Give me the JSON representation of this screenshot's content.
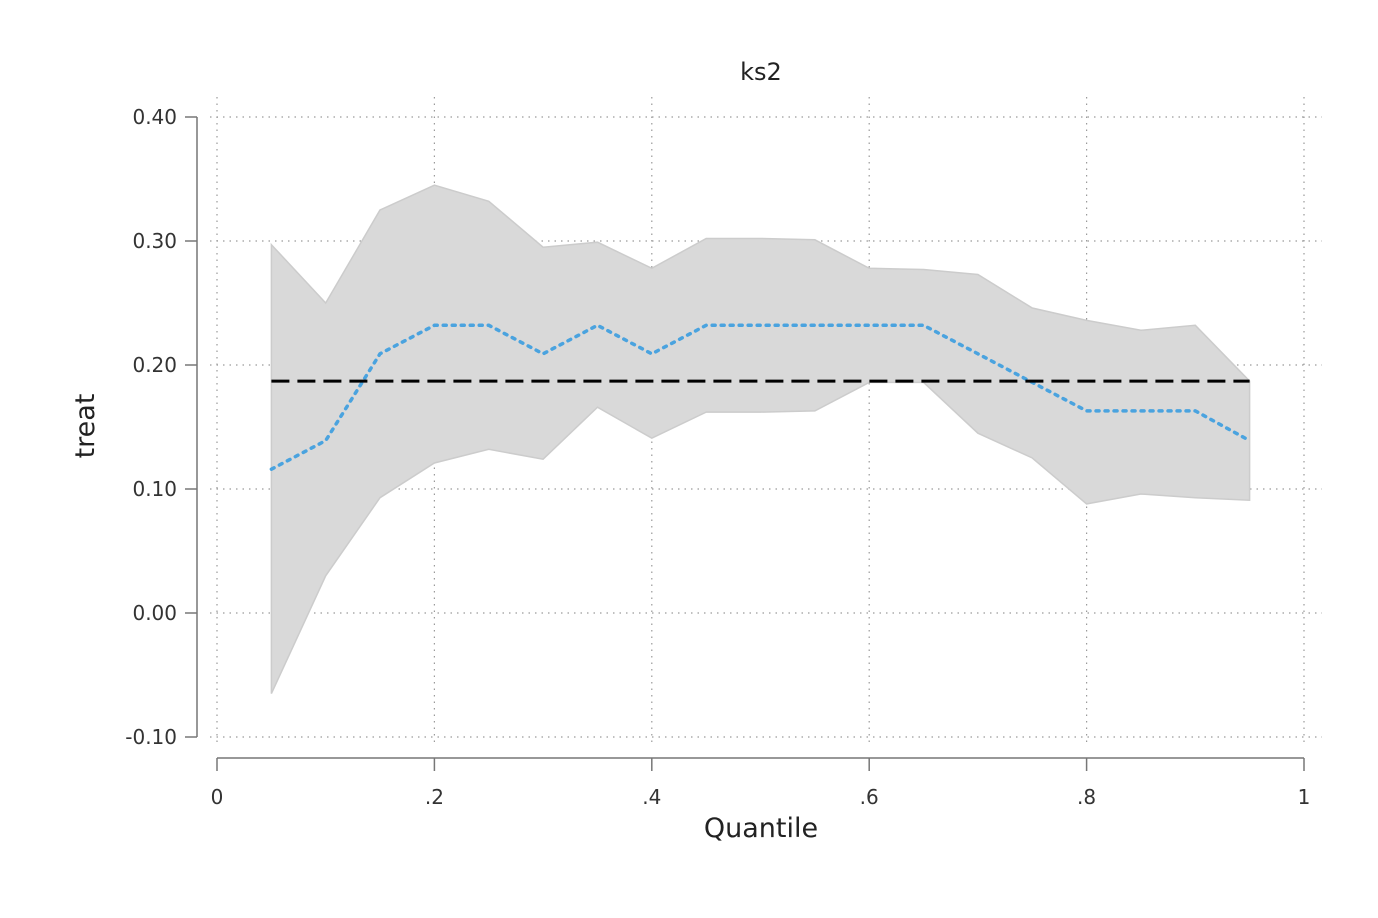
{
  "chart_data": {
    "type": "line",
    "title": "ks2",
    "xlabel": "Quantile",
    "ylabel": "treat",
    "xlim": [
      0,
      1
    ],
    "ylim": [
      -0.1,
      0.4
    ],
    "x_ticks": [
      0,
      0.2,
      0.4,
      0.6,
      0.8,
      1
    ],
    "x_tick_labels": [
      "0",
      ".2",
      ".4",
      ".6",
      ".8",
      "1"
    ],
    "y_ticks": [
      -0.1,
      0.0,
      0.1,
      0.2,
      0.3,
      0.4
    ],
    "y_tick_labels": [
      "-0.10",
      "0.00",
      "0.10",
      "0.20",
      "0.30",
      "0.40"
    ],
    "grid": true,
    "x": [
      0.05,
      0.1,
      0.15,
      0.2,
      0.25,
      0.3,
      0.35,
      0.4,
      0.45,
      0.5,
      0.55,
      0.6,
      0.65,
      0.7,
      0.75,
      0.8,
      0.85,
      0.9,
      0.95
    ],
    "series": [
      {
        "style": "dotted",
        "color": "#4aa3df",
        "values": [
          0.116,
          0.139,
          0.209,
          0.232,
          0.232,
          0.209,
          0.232,
          0.209,
          0.232,
          0.232,
          0.232,
          0.232,
          0.232,
          0.209,
          0.186,
          0.163,
          0.163,
          0.163,
          0.139
        ]
      },
      {
        "style": "dashed",
        "color": "#000000",
        "values": [
          0.187,
          0.187,
          0.187,
          0.187,
          0.187,
          0.187,
          0.187,
          0.187,
          0.187,
          0.187,
          0.187,
          0.187,
          0.187,
          0.187,
          0.187,
          0.187,
          0.187,
          0.187,
          0.187
        ]
      }
    ],
    "band": {
      "color": "#d9d9d9",
      "upper": [
        0.297,
        0.25,
        0.325,
        0.345,
        0.332,
        0.295,
        0.299,
        0.278,
        0.302,
        0.302,
        0.301,
        0.278,
        0.277,
        0.273,
        0.246,
        0.236,
        0.228,
        0.232,
        0.187
      ],
      "lower": [
        -0.065,
        0.03,
        0.093,
        0.121,
        0.132,
        0.124,
        0.166,
        0.141,
        0.162,
        0.162,
        0.163,
        0.186,
        0.186,
        0.145,
        0.125,
        0.088,
        0.096,
        0.093,
        0.091
      ]
    }
  }
}
